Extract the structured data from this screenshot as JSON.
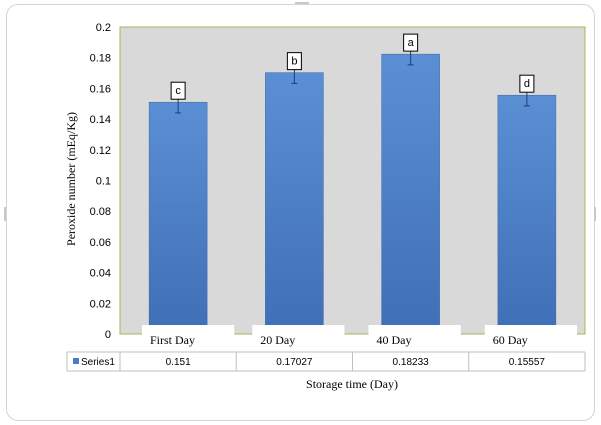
{
  "chart_data": {
    "type": "bar",
    "categories": [
      "First Day",
      "20 Day",
      "40 Day",
      "60 Day"
    ],
    "series": [
      {
        "name": "Series1",
        "values": [
          0.151,
          0.17027,
          0.18233,
          0.15557
        ],
        "errors": [
          0.007,
          0.007,
          0.007,
          0.007
        ],
        "labels": [
          "c",
          "b",
          "a",
          "d"
        ],
        "color": "#4a7cc4"
      }
    ],
    "table_values": [
      "0.151",
      "0.17027",
      "0.18233",
      "0.15557"
    ],
    "ylabel": "Peroxide number (mEq/Kg)",
    "xlabel": "Storage time (Day)",
    "ylim": [
      0,
      0.2
    ],
    "yticks": [
      "0",
      "0.02",
      "0.04",
      "0.06",
      "0.08",
      "0.1",
      "0.12",
      "0.14",
      "0.16",
      "0.18",
      "0.2"
    ],
    "grid": false,
    "plot_background": "#d9d9d9",
    "plot_border": "#9bbb59",
    "legend": "data-table"
  }
}
